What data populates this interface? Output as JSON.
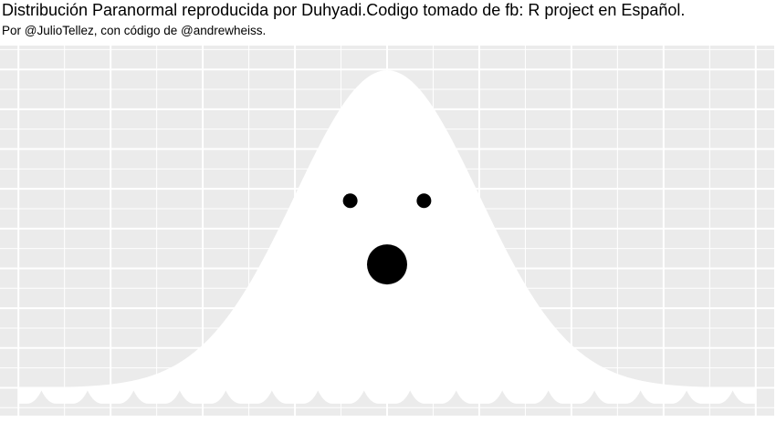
{
  "chart_data": {
    "type": "area",
    "title": "Distribución Paranormal reproducida por Duhyadi.Codigo tomado de fb: R project en Español.",
    "subtitle": "Por @JulioTellez, con código de @andrewheiss.",
    "xlabel": "",
    "ylabel": "",
    "xlim": [
      -4.2,
      4.2
    ],
    "ylim": [
      -0.035,
      0.43
    ],
    "grid": true,
    "legend": "none",
    "colors": {
      "panel_background": "#ebebeb",
      "grid": "#ffffff",
      "ghost_fill": "#ffffff",
      "face": "#000000"
    },
    "series": [
      {
        "type": "area",
        "distribution": "normal",
        "mean": 0,
        "sd": 1,
        "x_range": [
          -4,
          4
        ]
      }
    ],
    "eyes": [
      {
        "x": -0.4,
        "y": 0.235
      },
      {
        "x": 0.4,
        "y": 0.235
      }
    ],
    "mouth": {
      "x": 0,
      "y": 0.155
    },
    "hem": {
      "y_top": 0,
      "y_bottom": -0.02,
      "scallops": 16
    }
  }
}
